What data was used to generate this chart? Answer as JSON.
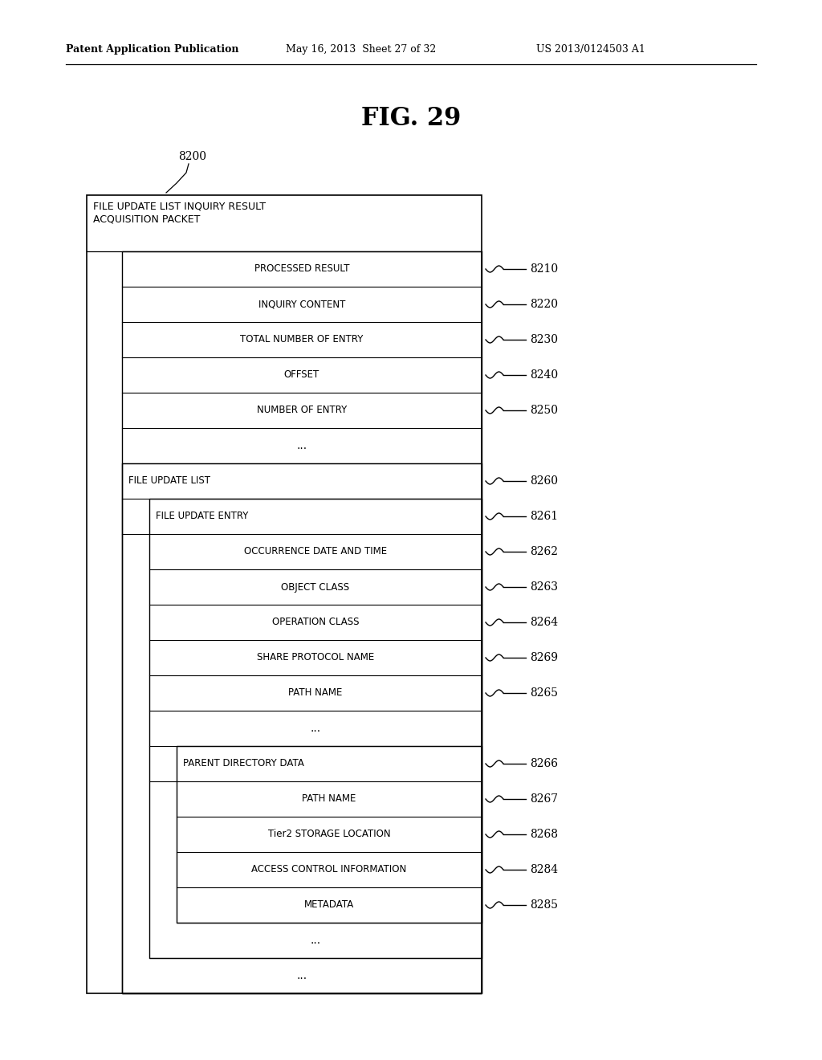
{
  "title": "FIG. 29",
  "fig_label": "8200",
  "header_text": "Patent Application Publication",
  "header_date": "May 16, 2013  Sheet 27 of 32",
  "header_patent": "US 2013/0124503 A1",
  "background_color": "#ffffff",
  "outer_box_label": "FILE UPDATE LIST INQUIRY RESULT\nACQUISITION PACKET",
  "rows": [
    {
      "label": "PROCESSED RESULT",
      "ref": "8210",
      "indent": 1
    },
    {
      "label": "INQUIRY CONTENT",
      "ref": "8220",
      "indent": 1
    },
    {
      "label": "TOTAL NUMBER OF ENTRY",
      "ref": "8230",
      "indent": 1
    },
    {
      "label": "OFFSET",
      "ref": "8240",
      "indent": 1
    },
    {
      "label": "NUMBER OF ENTRY",
      "ref": "8250",
      "indent": 1
    },
    {
      "label": "...",
      "ref": null,
      "indent": 1
    },
    {
      "label": "FILE UPDATE LIST",
      "ref": "8260",
      "indent": 1,
      "is_header": true
    },
    {
      "label": "FILE UPDATE ENTRY",
      "ref": "8261",
      "indent": 2,
      "is_header": true
    },
    {
      "label": "OCCURRENCE DATE AND TIME",
      "ref": "8262",
      "indent": 3
    },
    {
      "label": "OBJECT CLASS",
      "ref": "8263",
      "indent": 3
    },
    {
      "label": "OPERATION CLASS",
      "ref": "8264",
      "indent": 3
    },
    {
      "label": "SHARE PROTOCOL NAME",
      "ref": "8269",
      "indent": 3
    },
    {
      "label": "PATH NAME",
      "ref": "8265",
      "indent": 3
    },
    {
      "label": "...",
      "ref": null,
      "indent": 3
    },
    {
      "label": "PARENT DIRECTORY DATA",
      "ref": "8266",
      "indent": 3,
      "is_header": true
    },
    {
      "label": "PATH NAME",
      "ref": "8267",
      "indent": 4
    },
    {
      "label": "Tier2 STORAGE LOCATION",
      "ref": "8268",
      "indent": 4
    },
    {
      "label": "ACCESS CONTROL INFORMATION",
      "ref": "8284",
      "indent": 4
    },
    {
      "label": "METADATA",
      "ref": "8285",
      "indent": 4
    },
    {
      "label": "...",
      "ref": null,
      "indent": 3
    },
    {
      "label": "...",
      "ref": null,
      "indent": 2
    }
  ]
}
